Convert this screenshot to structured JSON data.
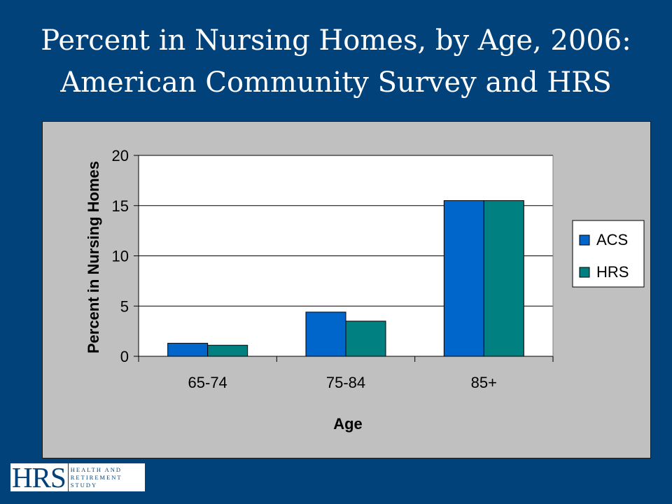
{
  "slide": {
    "title_line1": "Percent in Nursing Homes, by Age, 2006:",
    "title_line2": "American Community Survey and HRS",
    "background_color": "#02427a"
  },
  "logo": {
    "mark": "HRS",
    "line1": "HEALTH AND",
    "line2": "RETIREMENT",
    "line3": "STUDY"
  },
  "chart_data": {
    "type": "bar",
    "categories": [
      "65-74",
      "75-84",
      "85+"
    ],
    "series": [
      {
        "name": "ACS",
        "values": [
          1.3,
          4.4,
          15.5
        ],
        "color": "#0066cc"
      },
      {
        "name": "HRS",
        "values": [
          1.1,
          3.5,
          15.5
        ],
        "color": "#008080"
      }
    ],
    "xlabel": "Age",
    "ylabel": "Percent in Nursing Homes",
    "ylim": [
      0,
      20
    ],
    "yticks": [
      "0",
      "5",
      "10",
      "15",
      "20"
    ],
    "grid": true,
    "legend_position": "right",
    "plot_background": "#ffffff",
    "panel_background": "#c0c0c0"
  }
}
